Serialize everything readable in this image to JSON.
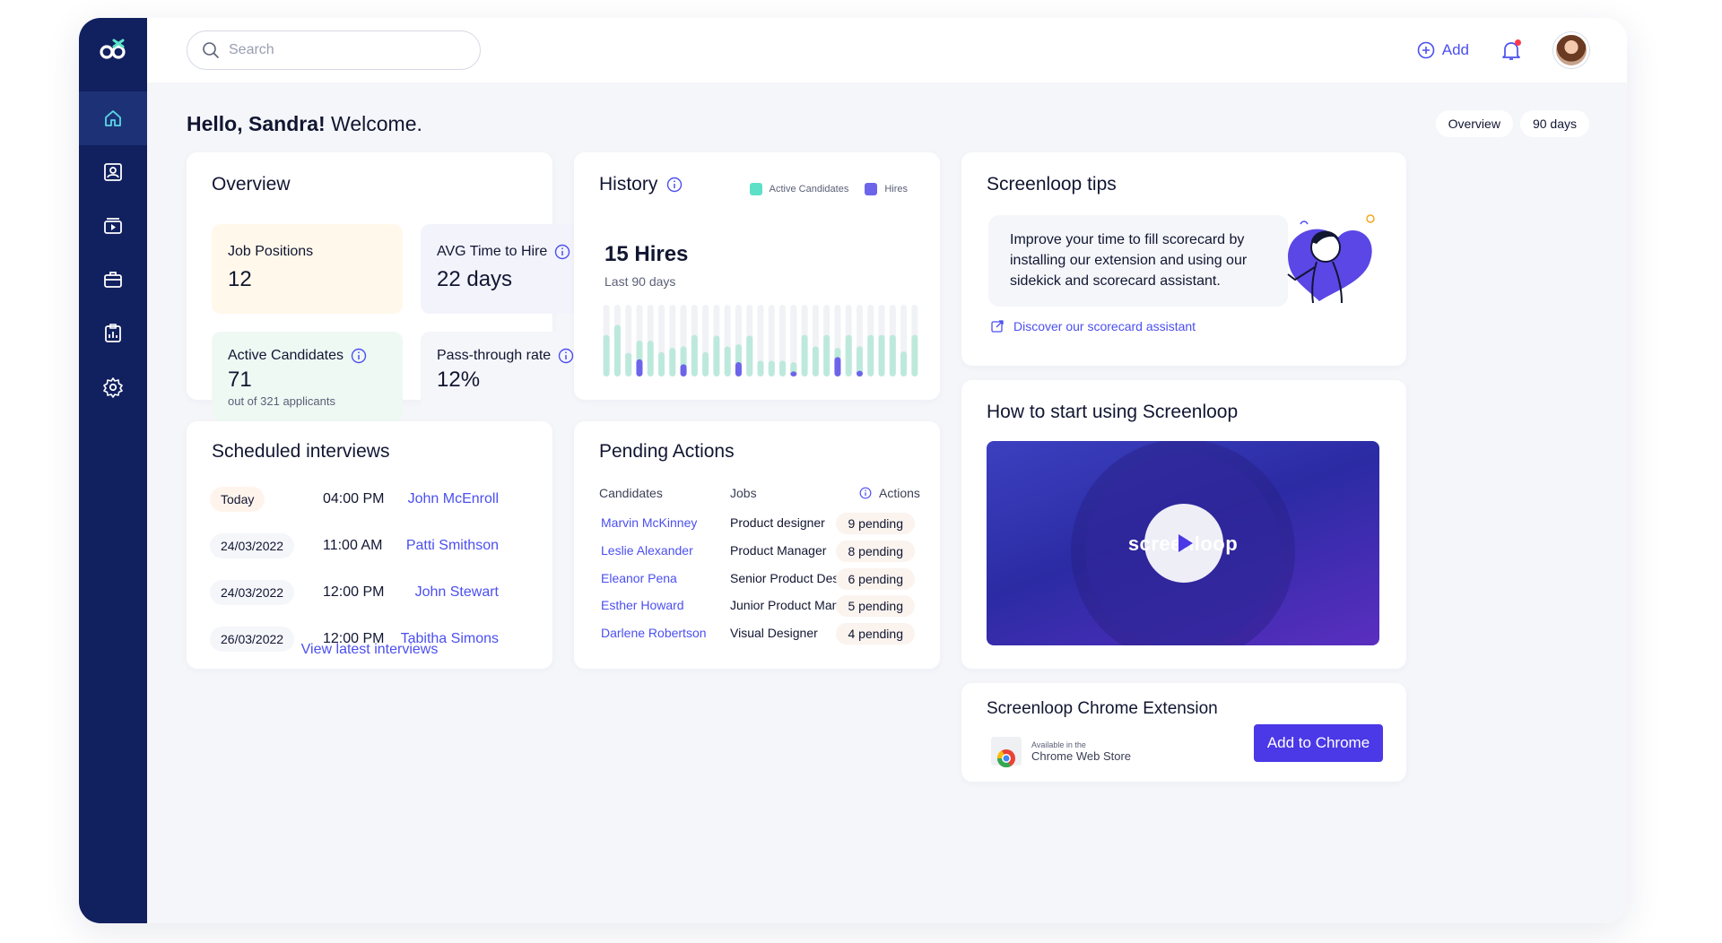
{
  "app": {
    "brand": "Screenloop"
  },
  "sidebar": {
    "items": [
      {
        "name": "home",
        "icon": "home-icon",
        "active": true
      },
      {
        "name": "candidates",
        "icon": "user-card-icon"
      },
      {
        "name": "interviews",
        "icon": "video-icon"
      },
      {
        "name": "jobs",
        "icon": "briefcase-icon"
      },
      {
        "name": "reports",
        "icon": "clipboard-chart-icon"
      },
      {
        "name": "settings",
        "icon": "gear-icon"
      }
    ]
  },
  "topbar": {
    "search_placeholder": "Search",
    "add_label": "Add"
  },
  "greeting": {
    "hello": "Hello, Sandra!",
    "welcome": "Welcome."
  },
  "filters": {
    "view": "Overview",
    "period": "90 days"
  },
  "overview": {
    "title": "Overview",
    "job_positions": {
      "label": "Job Positions",
      "value": "12"
    },
    "avg_time": {
      "label": "AVG Time to Hire",
      "value": "22 days"
    },
    "active_candidates": {
      "label": "Active Candidates",
      "value": "71",
      "sub": "out of 321 applicants"
    },
    "pass_through": {
      "label": "Pass-through rate",
      "value": "12%"
    }
  },
  "history": {
    "title": "History",
    "legend_active": "Active Candidates",
    "legend_hires": "Hires",
    "hires_value": "15 Hires",
    "hires_sub": "Last 90 days"
  },
  "chart_data": {
    "type": "bar",
    "series": [
      {
        "name": "Active Candidates",
        "values": [
          0.58,
          0.72,
          0.33,
          0.5,
          0.5,
          0.34,
          0.4,
          0.42,
          0.58,
          0.34,
          0.57,
          0.42,
          0.45,
          0.57,
          0.22,
          0.22,
          0.22,
          0.2,
          0.58,
          0.42,
          0.58,
          0.4,
          0.58,
          0.42,
          0.58,
          0.58,
          0.58,
          0.35,
          0.58
        ]
      },
      {
        "name": "Hires",
        "values": [
          0,
          0,
          0,
          0.24,
          0,
          0,
          0,
          0.17,
          0,
          0,
          0,
          0,
          0.2,
          0,
          0,
          0,
          0,
          0.07,
          0,
          0,
          0,
          0.27,
          0,
          0.08,
          0,
          0,
          0,
          0,
          0
        ]
      }
    ],
    "colors": {
      "track": "#f1f2f6",
      "active": "#bde9dc",
      "hires": "#6d64ea"
    },
    "ylim": [
      0,
      1
    ]
  },
  "tips": {
    "title": "Screenloop tips",
    "text": "Improve your time to fill scorecard by installing our extension and using our sidekick and scorecard assistant.",
    "link": "Discover our scorecard assistant"
  },
  "how_to": {
    "title": "How to start using Screenloop",
    "video_brand": "screenloop"
  },
  "extension": {
    "title": "Screenloop Chrome Extension",
    "store_small": "Available in the",
    "store_name": "Chrome Web Store",
    "button": "Add to Chrome"
  },
  "interviews": {
    "title": "Scheduled interviews",
    "rows": [
      {
        "date": "Today",
        "time": "04:00 PM",
        "name": "John McEnroll"
      },
      {
        "date": "24/03/2022",
        "time": "11:00 AM",
        "name": "Patti Smithson"
      },
      {
        "date": "24/03/2022",
        "time": "12:00 PM",
        "name": "John Stewart"
      },
      {
        "date": "26/03/2022",
        "time": "12:00 PM",
        "name": "Tabitha Simons"
      }
    ],
    "link": "View latest interviews"
  },
  "pending": {
    "title": "Pending Actions",
    "col_candidates": "Candidates",
    "col_jobs": "Jobs",
    "col_actions": "Actions",
    "rows": [
      {
        "candidate": "Marvin McKinney",
        "job": "Product designer",
        "pending": "9 pending"
      },
      {
        "candidate": "Leslie Alexander",
        "job": "Product Manager",
        "pending": "8 pending"
      },
      {
        "candidate": "Eleanor Pena",
        "job": "Senior Product Des...",
        "pending": "6 pending"
      },
      {
        "candidate": "Esther Howard",
        "job": "Junior Product Man...",
        "pending": "5 pending"
      },
      {
        "candidate": "Darlene Robertson",
        "job": "Visual Designer",
        "pending": "4 pending"
      }
    ]
  },
  "colors": {
    "sidebar": "#11205e",
    "accent": "#4b4ff0",
    "button": "#4b38e6"
  }
}
